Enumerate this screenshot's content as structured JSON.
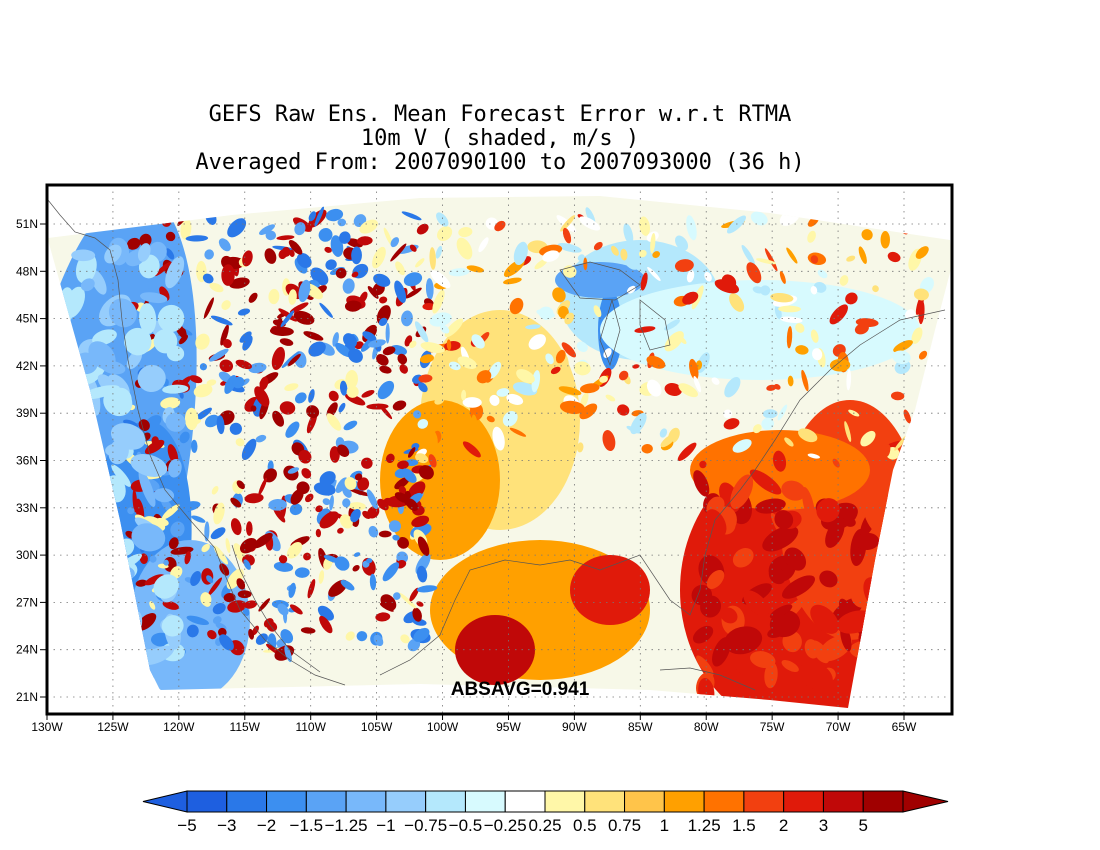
{
  "title": {
    "line1": "GEFS Raw Ens. Mean Forecast Error w.r.t RTMA",
    "line2": "10m V ( shaded, m/s )",
    "line3": "Averaged From: 2007090100 to 2007093000 (36 h)"
  },
  "annotation": "ABSAVG=0.941",
  "map": {
    "lat_labels": [
      "51N",
      "48N",
      "45N",
      "42N",
      "39N",
      "36N",
      "33N",
      "30N",
      "27N",
      "24N",
      "21N"
    ],
    "lat_values": [
      51,
      48,
      45,
      42,
      39,
      36,
      33,
      30,
      27,
      24,
      21
    ],
    "lon_labels": [
      "130W",
      "125W",
      "120W",
      "115W",
      "110W",
      "105W",
      "100W",
      "95W",
      "90W",
      "85W",
      "80W",
      "75W",
      "70W",
      "65W"
    ],
    "lon_values": [
      -130,
      -125,
      -120,
      -115,
      -110,
      -105,
      -100,
      -95,
      -90,
      -85,
      -80,
      -75,
      -70,
      -65
    ],
    "grid": true
  },
  "colorbar": {
    "labels": [
      "-5",
      "-3",
      "-2",
      "-1.5",
      "-1.25",
      "-1",
      "-0.75",
      "-0.5",
      "-0.25",
      "0.25",
      "0.5",
      "0.75",
      "1",
      "1.25",
      "1.5",
      "2",
      "3",
      "5"
    ],
    "colors": [
      "#1e5fe0",
      "#2a78e8",
      "#3c8ff0",
      "#5aa3f5",
      "#78b8fa",
      "#96cdfc",
      "#b4e8fc",
      "#d7fafe",
      "#ffffff",
      "#fff7a8",
      "#ffe27a",
      "#ffc44a",
      "#ffa000",
      "#ff7200",
      "#f24010",
      "#e01a0a",
      "#c00808",
      "#a00000"
    ],
    "low_color": "#1e5fe0",
    "high_color": "#a00000"
  }
}
